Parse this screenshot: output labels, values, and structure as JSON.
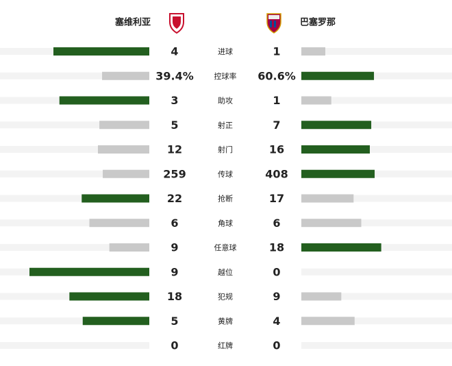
{
  "chart_data": {
    "type": "butterfly",
    "categories": [
      "进球",
      "控球率",
      "助攻",
      "射正",
      "射门",
      "传球",
      "抢断",
      "角球",
      "任意球",
      "越位",
      "犯规",
      "黄牌",
      "红牌"
    ],
    "series": [
      {
        "name": "塞维利亚",
        "values": [
          4,
          39.4,
          3,
          5,
          12,
          259,
          22,
          6,
          9,
          9,
          18,
          5,
          0
        ],
        "value_labels": [
          null,
          "39.4%",
          null,
          null,
          null,
          null,
          null,
          null,
          null,
          null,
          null,
          null,
          null
        ]
      },
      {
        "name": "巴塞罗那",
        "values": [
          1,
          60.6,
          1,
          7,
          16,
          408,
          17,
          6,
          18,
          0,
          9,
          4,
          0
        ],
        "value_labels": [
          null,
          "60.6%",
          null,
          null,
          null,
          null,
          null,
          null,
          null,
          null,
          null,
          null,
          null
        ]
      }
    ],
    "colors": {
      "leader": "#235f1f",
      "other": "#c9c9c9",
      "track": "#f3f3f3"
    }
  }
}
